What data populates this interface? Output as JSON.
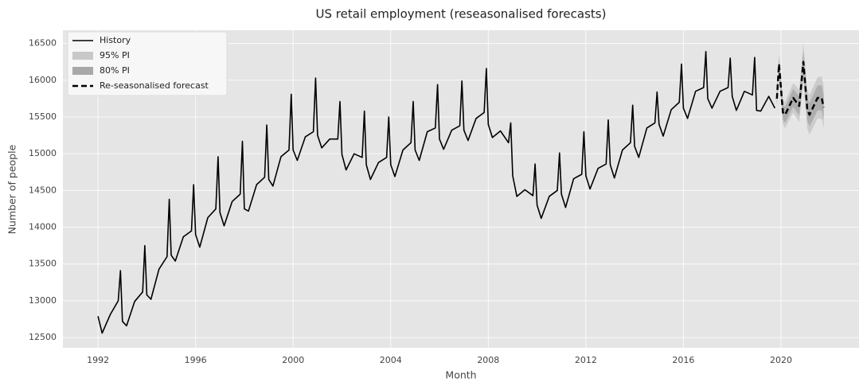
{
  "chart_data": {
    "type": "line",
    "title": "US retail employment (reseasonalised forecasts)",
    "xlabel": "Month",
    "ylabel": "Number of people",
    "xlim": [
      1990.56,
      2023.2
    ],
    "xticks": [
      1992,
      1996,
      2000,
      2004,
      2008,
      2012,
      2016,
      2020
    ],
    "ylim": [
      12360,
      16680
    ],
    "yticks": [
      12500,
      13000,
      13500,
      14000,
      14500,
      15000,
      15500,
      16000,
      16500
    ],
    "grid": true,
    "legend": "upper left",
    "series": [
      {
        "name": "History",
        "color": "#000000",
        "dash": false,
        "x": [
          1992,
          1992.17,
          1992.5,
          1992.83,
          1992.92,
          1993,
          1993.17,
          1993.5,
          1993.83,
          1993.92,
          1994,
          1994.17,
          1994.5,
          1994.83,
          1994.92,
          1995,
          1995.17,
          1995.5,
          1995.83,
          1995.92,
          1996,
          1996.17,
          1996.5,
          1996.83,
          1996.92,
          1997,
          1997.17,
          1997.5,
          1997.83,
          1997.92,
          1998,
          1998.17,
          1998.5,
          1998.83,
          1998.92,
          1999,
          1999.17,
          1999.5,
          1999.83,
          1999.92,
          2000,
          2000.17,
          2000.5,
          2000.83,
          2000.92,
          2001,
          2001.17,
          2001.5,
          2001.83,
          2001.92,
          2002,
          2002.17,
          2002.5,
          2002.83,
          2002.92,
          2003,
          2003.17,
          2003.5,
          2003.83,
          2003.92,
          2004,
          2004.17,
          2004.5,
          2004.83,
          2004.92,
          2005,
          2005.17,
          2005.5,
          2005.83,
          2005.92,
          2006,
          2006.17,
          2006.5,
          2006.83,
          2006.92,
          2007,
          2007.17,
          2007.5,
          2007.83,
          2007.92,
          2008,
          2008.17,
          2008.5,
          2008.83,
          2008.92,
          2009,
          2009.17,
          2009.5,
          2009.83,
          2009.92,
          2010,
          2010.17,
          2010.5,
          2010.83,
          2010.92,
          2011,
          2011.17,
          2011.5,
          2011.83,
          2011.92,
          2012,
          2012.17,
          2012.5,
          2012.83,
          2012.92,
          2013,
          2013.17,
          2013.5,
          2013.83,
          2013.92,
          2014,
          2014.17,
          2014.5,
          2014.83,
          2014.92,
          2015,
          2015.17,
          2015.5,
          2015.83,
          2015.92,
          2016,
          2016.17,
          2016.5,
          2016.83,
          2016.92,
          2017,
          2017.17,
          2017.5,
          2017.83,
          2017.92,
          2018,
          2018.17,
          2018.5,
          2018.83,
          2018.92,
          2019,
          2019.17,
          2019.5,
          2019.75
        ],
        "values": [
          12790,
          12560,
          12810,
          13000,
          13410,
          12720,
          12660,
          12990,
          13120,
          13750,
          13080,
          13020,
          13430,
          13600,
          14380,
          13620,
          13540,
          13870,
          13950,
          14580,
          13900,
          13730,
          14130,
          14250,
          14960,
          14200,
          14020,
          14350,
          14450,
          15170,
          14250,
          14220,
          14580,
          14680,
          15390,
          14650,
          14560,
          14960,
          15050,
          15810,
          15050,
          14910,
          15230,
          15300,
          16030,
          15250,
          15080,
          15200,
          15200,
          15710,
          14990,
          14780,
          15000,
          14950,
          15580,
          14850,
          14650,
          14880,
          14950,
          15500,
          14850,
          14690,
          15050,
          15150,
          15710,
          15050,
          14910,
          15300,
          15350,
          15940,
          15200,
          15060,
          15320,
          15380,
          15990,
          15320,
          15180,
          15480,
          15560,
          16160,
          15400,
          15220,
          15310,
          15150,
          15420,
          14700,
          14420,
          14510,
          14430,
          14860,
          14300,
          14120,
          14420,
          14500,
          15010,
          14450,
          14270,
          14660,
          14720,
          15300,
          14700,
          14520,
          14800,
          14860,
          15460,
          14850,
          14670,
          15050,
          15150,
          15660,
          15100,
          14950,
          15350,
          15420,
          15840,
          15400,
          15240,
          15600,
          15700,
          16220,
          15620,
          15480,
          15850,
          15900,
          16390,
          15750,
          15620,
          15850,
          15900,
          16300,
          15780,
          15590,
          15850,
          15800,
          16310,
          15590,
          15580,
          15780,
          15620
        ]
      },
      {
        "name": "Re-seasonalised forecast",
        "color": "#000000",
        "dash": true,
        "x": [
          2019.83,
          2019.92,
          2020.08,
          2020.17,
          2020.5,
          2020.75,
          2020.92,
          2021.08,
          2021.17,
          2021.5,
          2021.67,
          2021.75
        ],
        "values": [
          15750,
          16220,
          15560,
          15530,
          15760,
          15650,
          16250,
          15600,
          15530,
          15760,
          15760,
          15630
        ]
      }
    ],
    "bands": [
      {
        "name": "95% PI",
        "color": "#c8c8c8",
        "x": [
          2019.83,
          2019.92,
          2020.08,
          2020.17,
          2020.5,
          2020.75,
          2020.92,
          2021.08,
          2021.17,
          2021.5,
          2021.67,
          2021.75
        ],
        "lower": [
          15630,
          16070,
          15400,
          15350,
          15560,
          15430,
          15990,
          15340,
          15260,
          15480,
          15470,
          15340
        ],
        "upper": [
          15870,
          16370,
          15720,
          15710,
          15960,
          15870,
          16510,
          15860,
          15800,
          16040,
          16050,
          15920
        ]
      },
      {
        "name": "80% PI",
        "color": "#a8a8a8",
        "x": [
          2019.83,
          2019.92,
          2020.08,
          2020.17,
          2020.5,
          2020.75,
          2020.92,
          2021.08,
          2021.17,
          2021.5,
          2021.67,
          2021.75
        ],
        "lower": [
          15670,
          16130,
          15460,
          15420,
          15640,
          15520,
          16110,
          15450,
          15370,
          15590,
          15590,
          15460
        ],
        "upper": [
          15830,
          16310,
          15660,
          15640,
          15880,
          15780,
          16390,
          15750,
          15690,
          15930,
          15930,
          15800
        ]
      }
    ]
  }
}
